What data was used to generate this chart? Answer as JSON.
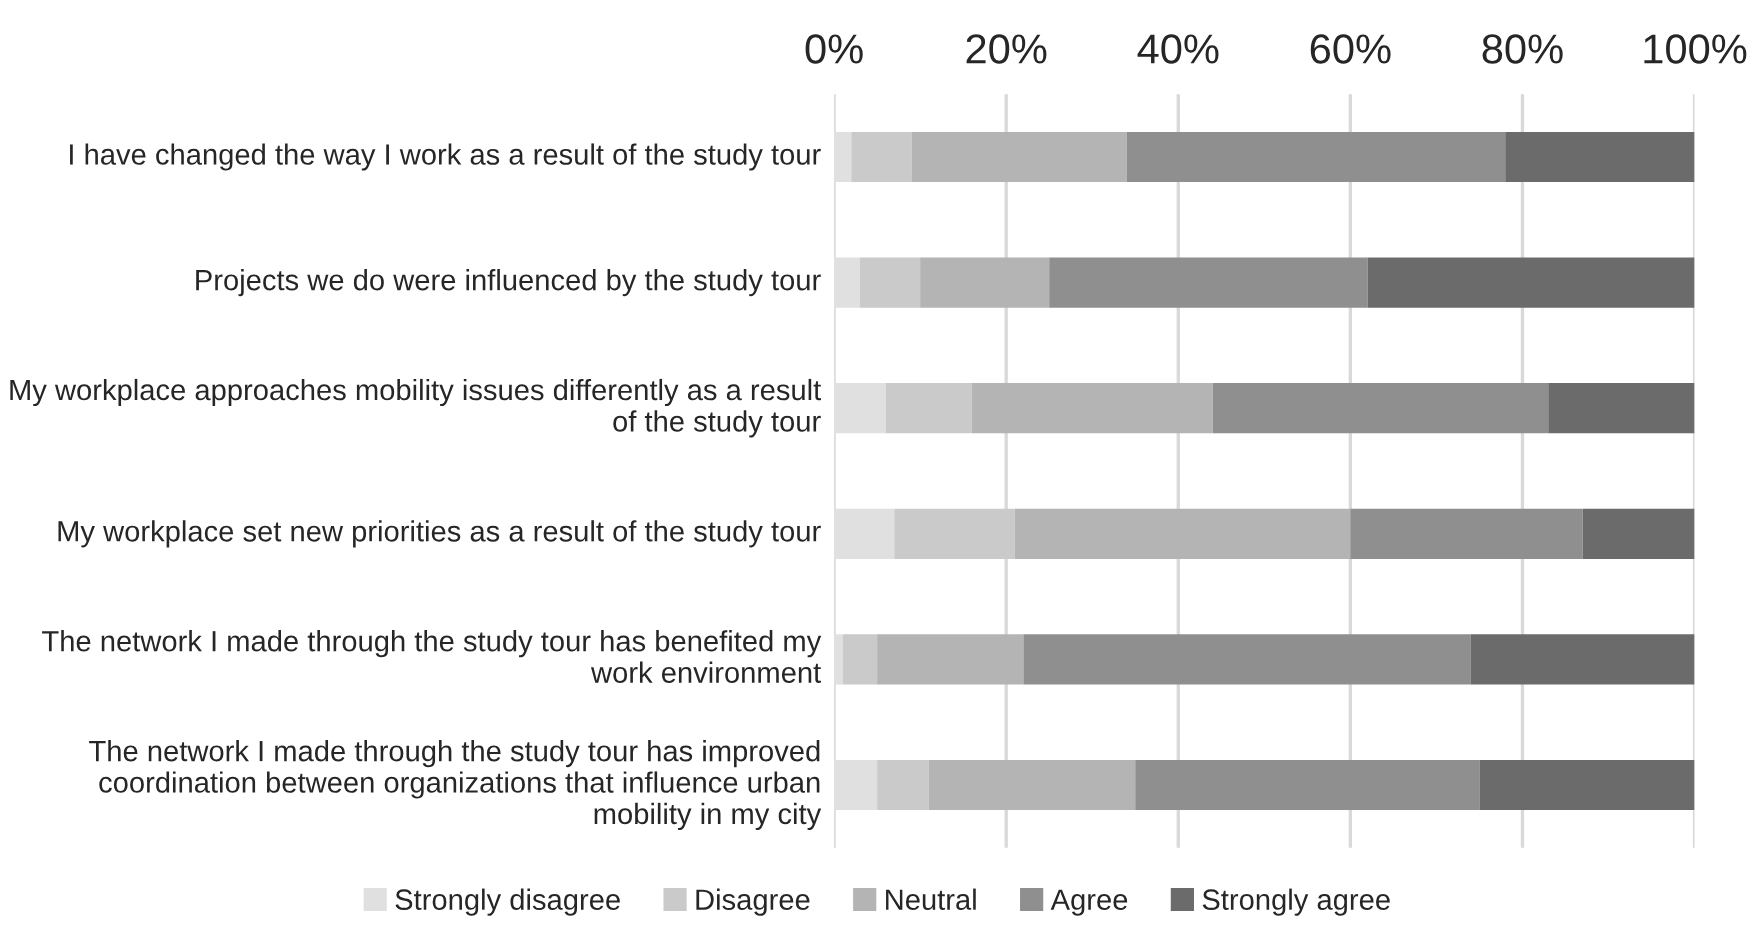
{
  "chart_data": {
    "type": "bar",
    "orientation": "horizontal",
    "stacked": true,
    "categories": [
      "I have changed the way I work as a result of the study tour",
      "Projects we do were influenced by the study tour",
      "My workplace approaches mobility issues differently as a result of the study tour",
      "My workplace set new priorities as a result of the study tour",
      "The network I made through the study tour has benefited my work environment",
      "The network I made through the study tour has improved coordination between organizations that influence urban mobility in my city"
    ],
    "series": [
      {
        "name": "Strongly disagree",
        "color": "#e0e0e0",
        "values": [
          2,
          3,
          6,
          7,
          1,
          5
        ]
      },
      {
        "name": "Disagree",
        "color": "#cacaca",
        "values": [
          7,
          7,
          10,
          14,
          4,
          6
        ]
      },
      {
        "name": "Neutral",
        "color": "#b4b4b4",
        "values": [
          25,
          15,
          28,
          39,
          17,
          24
        ]
      },
      {
        "name": "Agree",
        "color": "#8f8f8f",
        "values": [
          44,
          37,
          39,
          27,
          52,
          40
        ]
      },
      {
        "name": "Strongly agree",
        "color": "#6b6b6b",
        "values": [
          22,
          38,
          17,
          13,
          26,
          25
        ]
      }
    ],
    "xlim": [
      0,
      100
    ],
    "xticks": [
      {
        "value": 0,
        "label": "0%"
      },
      {
        "value": 20,
        "label": "20%"
      },
      {
        "value": 40,
        "label": "40%"
      },
      {
        "value": 60,
        "label": "60%"
      },
      {
        "value": 80,
        "label": "80%"
      },
      {
        "value": 100,
        "label": "100%"
      }
    ],
    "grid": "x",
    "legend": "bottom"
  }
}
